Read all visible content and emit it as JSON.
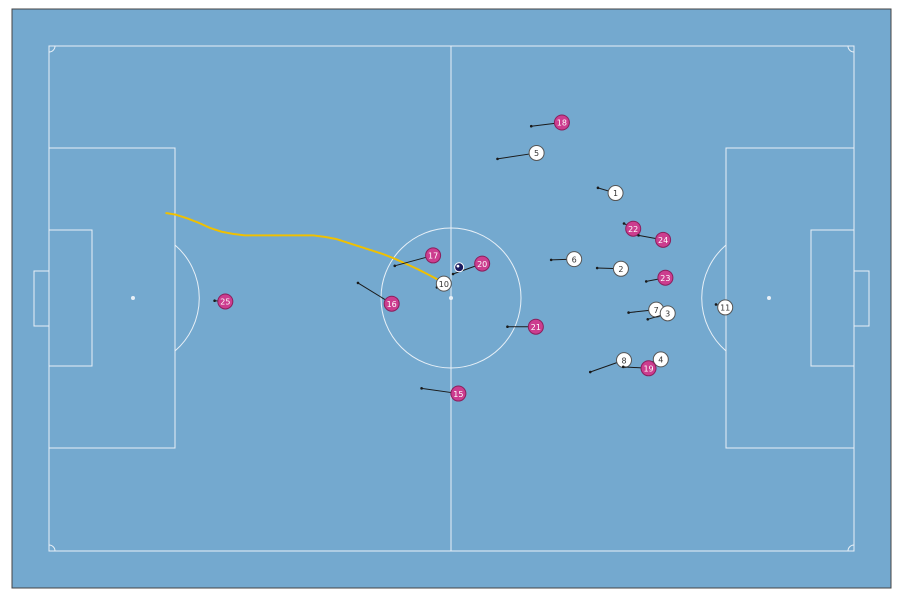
{
  "pitch": {
    "surface_color": "#74a9cf",
    "line_color": "#e8f0f7",
    "length": 105,
    "width": 68
  },
  "colors": {
    "home_fill": "#ffffff",
    "away_fill": "#cc3d8f",
    "away_text": "#ffffff",
    "home_text": "#333333",
    "trail": "#f0c000",
    "ball": "#1a1a5e",
    "motion": "#1a1a1a"
  },
  "players": [
    {
      "team": "away",
      "number": "18",
      "x": 66.9,
      "y": 57.7,
      "dx": -4.0,
      "dy": -0.5
    },
    {
      "team": "home",
      "number": "5",
      "x": 63.6,
      "y": 53.6,
      "dx": -5.1,
      "dy": -0.8
    },
    {
      "team": "home",
      "number": "1",
      "x": 73.9,
      "y": 48.2,
      "dx": -2.3,
      "dy": 0.7
    },
    {
      "team": "away",
      "number": "22",
      "x": 76.2,
      "y": 43.4,
      "dx": -1.2,
      "dy": 0.7
    },
    {
      "team": "away",
      "number": "24",
      "x": 80.1,
      "y": 41.9,
      "dx": -3.2,
      "dy": 0.6
    },
    {
      "team": "home",
      "number": "6",
      "x": 68.5,
      "y": 39.3,
      "dx": -3.0,
      "dy": -0.1
    },
    {
      "team": "home",
      "number": "2",
      "x": 74.6,
      "y": 38.0,
      "dx": -3.1,
      "dy": 0.1
    },
    {
      "team": "away",
      "number": "23",
      "x": 80.4,
      "y": 36.8,
      "dx": -2.5,
      "dy": -0.5
    },
    {
      "team": "home",
      "number": "7",
      "x": 79.2,
      "y": 32.5,
      "dx": -3.6,
      "dy": -0.4
    },
    {
      "team": "home",
      "number": "3",
      "x": 80.7,
      "y": 32.0,
      "dx": -2.6,
      "dy": -0.8
    },
    {
      "team": "home",
      "number": "11",
      "x": 88.2,
      "y": 32.8,
      "dx": -1.2,
      "dy": 0.4
    },
    {
      "team": "away",
      "number": "21",
      "x": 63.5,
      "y": 30.2,
      "dx": -3.7,
      "dy": 0.0
    },
    {
      "team": "home",
      "number": "8",
      "x": 75.0,
      "y": 25.7,
      "dx": -4.4,
      "dy": -1.6
    },
    {
      "team": "home",
      "number": "4",
      "x": 79.8,
      "y": 25.8,
      "dx": -1.7,
      "dy": -0.5
    },
    {
      "team": "away",
      "number": "19",
      "x": 78.2,
      "y": 24.6,
      "dx": -3.3,
      "dy": 0.2
    },
    {
      "team": "away",
      "number": "17",
      "x": 50.1,
      "y": 39.8,
      "dx": -5.0,
      "dy": -1.4
    },
    {
      "team": "away",
      "number": "20",
      "x": 56.5,
      "y": 38.7,
      "dx": -3.8,
      "dy": -1.4
    },
    {
      "team": "home",
      "number": "10",
      "x": 51.5,
      "y": 36.0,
      "dx": -0.9,
      "dy": -0.5
    },
    {
      "team": "away",
      "number": "16",
      "x": 44.7,
      "y": 33.3,
      "dx": -4.4,
      "dy": 2.8
    },
    {
      "team": "away",
      "number": "25",
      "x": 23.0,
      "y": 33.6,
      "dx": -1.4,
      "dy": 0.1
    },
    {
      "team": "away",
      "number": "15",
      "x": 53.4,
      "y": 21.2,
      "dx": -4.8,
      "dy": 0.7
    }
  ],
  "ball": {
    "x": 53.5,
    "y": 38.2
  },
  "ball_trail": [
    [
      15.3,
      45.5
    ],
    [
      16.5,
      45.3
    ],
    [
      18.0,
      44.8
    ],
    [
      19.5,
      44.2
    ],
    [
      21.0,
      43.5
    ],
    [
      22.5,
      43.0
    ],
    [
      24.0,
      42.7
    ],
    [
      25.5,
      42.5
    ],
    [
      27.0,
      42.5
    ],
    [
      28.5,
      42.5
    ],
    [
      30.0,
      42.5
    ],
    [
      31.5,
      42.5
    ],
    [
      33.0,
      42.5
    ],
    [
      34.5,
      42.5
    ],
    [
      36.0,
      42.3
    ],
    [
      37.5,
      42.0
    ],
    [
      39.0,
      41.5
    ],
    [
      40.5,
      41.0
    ],
    [
      42.0,
      40.5
    ],
    [
      43.5,
      40.0
    ],
    [
      45.0,
      39.4
    ],
    [
      46.5,
      38.7
    ],
    [
      48.0,
      38.0
    ],
    [
      49.5,
      37.2
    ],
    [
      50.8,
      36.5
    ]
  ]
}
